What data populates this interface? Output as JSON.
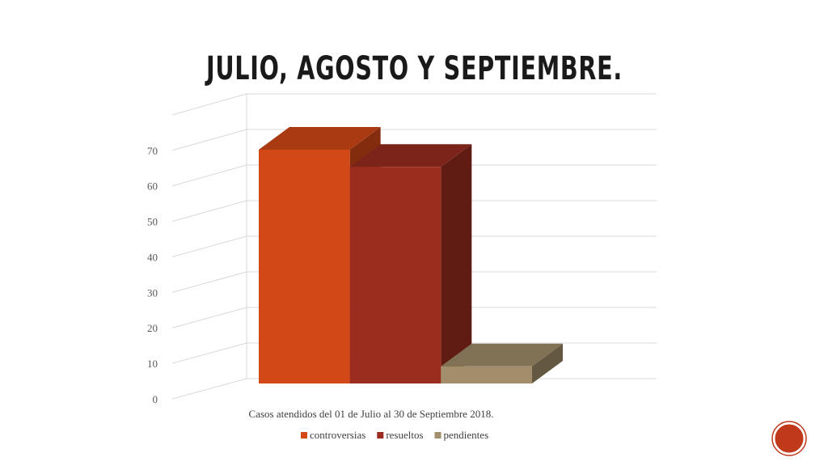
{
  "chart_data": {
    "type": "bar3d",
    "title": "JULIO, AGOSTO Y SEPTIEMBRE.",
    "categories": [
      "Casos atendidos del 01 de Julio al 30 de Septiembre 2018."
    ],
    "series": [
      {
        "name": "controversias",
        "color": "#d34817",
        "values": [
          68
        ]
      },
      {
        "name": "resueltos",
        "color": "#9b2d1f",
        "values": [
          63
        ]
      },
      {
        "name": "pendientes",
        "color": "#a28e6a",
        "values": [
          5
        ]
      }
    ],
    "ylim": [
      0,
      80
    ],
    "yticks": [
      0,
      10,
      20,
      30,
      40,
      50,
      60,
      70
    ],
    "grid": true,
    "legend": "bottom"
  }
}
